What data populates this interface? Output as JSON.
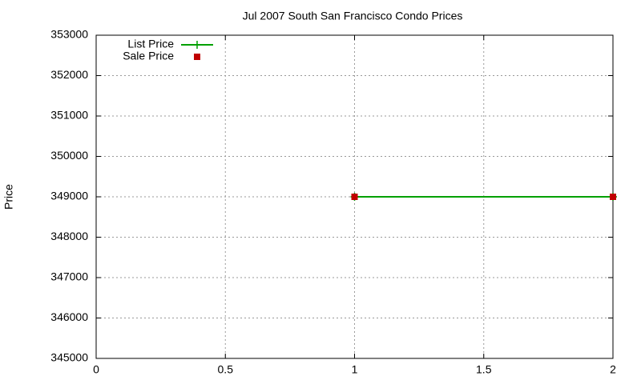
{
  "chart_data": {
    "type": "line",
    "title": "Jul 2007 South San Francisco Condo Prices",
    "y_label": "Price",
    "x": [
      1,
      2
    ],
    "series": [
      {
        "name": "List Price",
        "color": "#00a000",
        "style": "linespoints",
        "values": [
          349000,
          349000
        ]
      },
      {
        "name": "Sale Price",
        "color": "#c00000",
        "style": "points",
        "values": [
          349000,
          349000
        ]
      }
    ],
    "xlim": [
      0,
      2
    ],
    "xticks": [
      0,
      0.5,
      1,
      1.5,
      2
    ],
    "ylim": [
      345000,
      353000
    ],
    "yticks": [
      345000,
      346000,
      347000,
      348000,
      349000,
      350000,
      351000,
      352000,
      353000
    ],
    "grid": true,
    "legend": "top-left"
  }
}
